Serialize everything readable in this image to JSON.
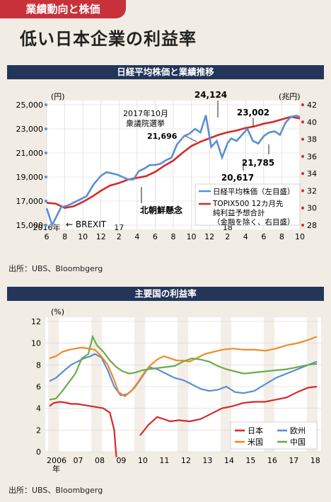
{
  "header": {
    "tag": "業績動向と株価",
    "title": "低い日本企業の利益率"
  },
  "chart1": {
    "bar_title": "日経平均株価と業績推移",
    "source": "出所：UBS、Bloombgerg",
    "chart_data": {
      "type": "line",
      "ylabel_left": "(円)",
      "ylabel_right": "(兆円)",
      "ylim_left": [
        15000,
        25000
      ],
      "ylim_right": [
        28,
        42
      ],
      "yticks_left": [
        "15,000",
        "17,000",
        "19,000",
        "21,000",
        "23,000",
        "25,000"
      ],
      "yticks_right": [
        "28",
        "30",
        "32",
        "34",
        "36",
        "38",
        "40",
        "42"
      ],
      "xticks": [
        "6",
        "8",
        "10",
        "12",
        "2",
        "4",
        "6",
        "8",
        "10",
        "12",
        "2",
        "4",
        "6",
        "8",
        "10"
      ],
      "year_labels": [
        {
          "text": "2016年",
          "tick": 0
        },
        {
          "text": "17",
          "tick": 4
        },
        {
          "text": "18",
          "tick": 10
        }
      ],
      "series": [
        {
          "name": "日経平均株価（左目盛）",
          "axis": "left",
          "color": "#5b8fd1",
          "x": [
            0,
            0.3,
            0.5,
            0.8,
            1.1,
            1.4,
            1.8,
            2.2,
            2.6,
            3.0,
            3.3,
            3.6,
            3.9,
            4.2,
            4.5,
            4.8,
            5.1,
            5.4,
            5.7,
            6.0,
            6.3,
            6.6,
            6.9,
            7.2,
            7.6,
            7.9,
            8.2,
            8.5,
            8.8,
            9.1,
            9.4,
            9.7,
            10.0,
            10.2,
            10.5,
            10.8,
            11.1,
            11.4,
            11.7,
            12.0,
            12.3,
            12.6,
            12.9,
            13.2,
            13.5,
            13.8,
            14.0
          ],
          "values": [
            16400,
            15000,
            15600,
            16500,
            16600,
            16800,
            17100,
            17400,
            18400,
            19100,
            19400,
            19300,
            19200,
            19000,
            18800,
            18800,
            19500,
            19700,
            20000,
            20000,
            20100,
            20400,
            20600,
            21696,
            22400,
            22600,
            23000,
            22700,
            24124,
            21500,
            22000,
            20617,
            21800,
            22200,
            22000,
            22500,
            23002,
            22000,
            21785,
            22400,
            22700,
            22800,
            22500,
            23500,
            24000,
            24100,
            24000
          ]
        },
        {
          "name": "TOPIX500 12カ月先 純利益予想合計（金融を除く、右目盛）",
          "axis": "right",
          "color": "#d42a2a",
          "x": [
            0,
            0.5,
            1.0,
            1.5,
            2.0,
            2.5,
            3.0,
            3.5,
            4.0,
            4.5,
            5.0,
            5.5,
            6.0,
            6.5,
            7.0,
            7.5,
            8.0,
            8.5,
            9.0,
            9.5,
            10.0,
            10.5,
            11.0,
            11.5,
            12.0,
            12.5,
            13.0,
            13.5,
            14.0
          ],
          "values": [
            30.6,
            30.5,
            30.0,
            30.2,
            30.7,
            31.3,
            32.0,
            32.6,
            32.9,
            33.3,
            33.5,
            33.7,
            34.2,
            34.9,
            35.5,
            36.4,
            37.2,
            37.7,
            38.1,
            38.5,
            38.8,
            39.0,
            39.3,
            39.5,
            39.8,
            40.0,
            40.3,
            40.6,
            40.4
          ]
        }
      ],
      "annotations": [
        "BREXIT",
        "2017年10月",
        "衆議院選挙",
        "21,696",
        "24,124",
        "23,002",
        "20,617",
        "21,785",
        "北朝鮮懸念"
      ],
      "legend": {
        "placement": "right",
        "items": [
          [
            "日経平均株価（左目盛）"
          ],
          [
            "TOPIX500 12カ月先",
            "純利益予想合計",
            "（金融を除く、右目盛）"
          ]
        ]
      }
    }
  },
  "chart2": {
    "bar_title": "主要国の利益率",
    "source": "出所：UBS、Bloombgerg",
    "chart_data": {
      "type": "line",
      "ylabel": "(%)",
      "ylim": [
        0,
        12
      ],
      "yticks": [
        "0",
        "2",
        "4",
        "6",
        "8",
        "10",
        "12"
      ],
      "xticks": [
        "2006",
        "07",
        "08",
        "09",
        "10",
        "11",
        "12",
        "13",
        "14",
        "15",
        "16",
        "17",
        "18"
      ],
      "x_suffix": "年",
      "legend": {
        "placement": "bottom-right"
      },
      "series": [
        {
          "name": "日本",
          "color": "#d42a2a",
          "x": [
            0,
            0.2,
            0.5,
            0.8,
            1.0,
            1.3,
            1.6,
            1.9,
            2.2,
            2.5,
            2.8,
            3.0,
            3.1,
            3.4,
            3.8,
            4.2,
            4.6,
            5.0,
            5.3,
            5.6,
            6.0,
            6.5,
            7.0,
            7.5,
            8.0,
            8.5,
            9.0,
            9.5,
            10.0,
            10.5,
            11.0,
            11.5,
            12.0,
            12.4
          ],
          "values": [
            4.2,
            4.5,
            4.6,
            4.5,
            4.4,
            4.4,
            4.3,
            4.2,
            4.1,
            4.0,
            3.6,
            2.0,
            -0.5,
            null,
            null,
            1.5,
            2.5,
            3.2,
            3.0,
            2.8,
            2.9,
            2.8,
            3.0,
            3.5,
            4.0,
            4.2,
            4.5,
            4.6,
            4.6,
            4.8,
            5.0,
            5.5,
            5.9,
            6.0
          ]
        },
        {
          "name": "欧州",
          "color": "#5b8fd1",
          "x": [
            0,
            0.3,
            0.7,
            1.0,
            1.3,
            1.6,
            1.9,
            2.1,
            2.4,
            2.7,
            3.0,
            3.3,
            3.6,
            3.9,
            4.2,
            4.6,
            5.0,
            5.4,
            5.8,
            6.2,
            6.6,
            7.0,
            7.4,
            7.8,
            8.2,
            8.6,
            9.0,
            9.5,
            10.0,
            10.5,
            11.0,
            11.5,
            12.0,
            12.4
          ],
          "values": [
            6.5,
            6.8,
            7.5,
            8.0,
            8.3,
            8.6,
            8.8,
            9.0,
            8.7,
            7.5,
            6.0,
            5.2,
            5.3,
            5.8,
            6.6,
            7.8,
            7.6,
            7.2,
            6.8,
            6.6,
            6.2,
            5.8,
            5.6,
            5.7,
            6.0,
            5.5,
            5.4,
            5.6,
            6.2,
            6.8,
            7.2,
            7.6,
            8.0,
            8.3
          ]
        },
        {
          "name": "米国",
          "color": "#ef8a2a",
          "x": [
            0,
            0.3,
            0.6,
            0.9,
            1.2,
            1.5,
            1.8,
            2.1,
            2.4,
            2.7,
            3.0,
            3.2,
            3.5,
            3.8,
            4.1,
            4.4,
            4.7,
            5.0,
            5.3,
            5.6,
            5.9,
            6.2,
            6.5,
            6.8,
            7.2,
            7.6,
            8.0,
            8.5,
            9.0,
            9.5,
            10.0,
            10.5,
            11.0,
            11.5,
            12.0,
            12.4
          ],
          "values": [
            8.6,
            8.8,
            9.2,
            9.4,
            9.5,
            9.6,
            9.5,
            9.4,
            8.8,
            8.0,
            6.6,
            5.5,
            5.1,
            5.6,
            6.4,
            7.3,
            8.0,
            8.5,
            8.8,
            8.6,
            8.4,
            8.4,
            8.3,
            8.6,
            9.0,
            9.2,
            9.4,
            9.5,
            9.4,
            9.4,
            9.3,
            9.5,
            9.8,
            10.0,
            10.3,
            10.6
          ]
        },
        {
          "name": "中国",
          "color": "#6aac4a",
          "x": [
            0,
            0.3,
            0.6,
            0.9,
            1.2,
            1.5,
            1.8,
            2.0,
            2.2,
            2.5,
            2.8,
            3.1,
            3.4,
            3.7,
            4.0,
            4.3,
            4.6,
            5.0,
            5.4,
            5.8,
            6.2,
            6.6,
            7.0,
            7.4,
            7.8,
            8.2,
            8.6,
            9.0,
            9.5,
            10.0,
            10.5,
            11.0,
            11.5,
            12.0,
            12.4
          ],
          "values": [
            4.8,
            4.9,
            5.6,
            6.4,
            7.2,
            8.6,
            9.0,
            10.6,
            9.8,
            9.2,
            8.4,
            7.8,
            7.4,
            7.2,
            7.3,
            7.5,
            7.6,
            7.7,
            7.8,
            7.9,
            8.3,
            8.6,
            8.5,
            8.3,
            7.9,
            7.6,
            7.4,
            7.2,
            7.3,
            7.4,
            7.5,
            7.6,
            7.8,
            8.0,
            8.1
          ]
        }
      ]
    }
  }
}
